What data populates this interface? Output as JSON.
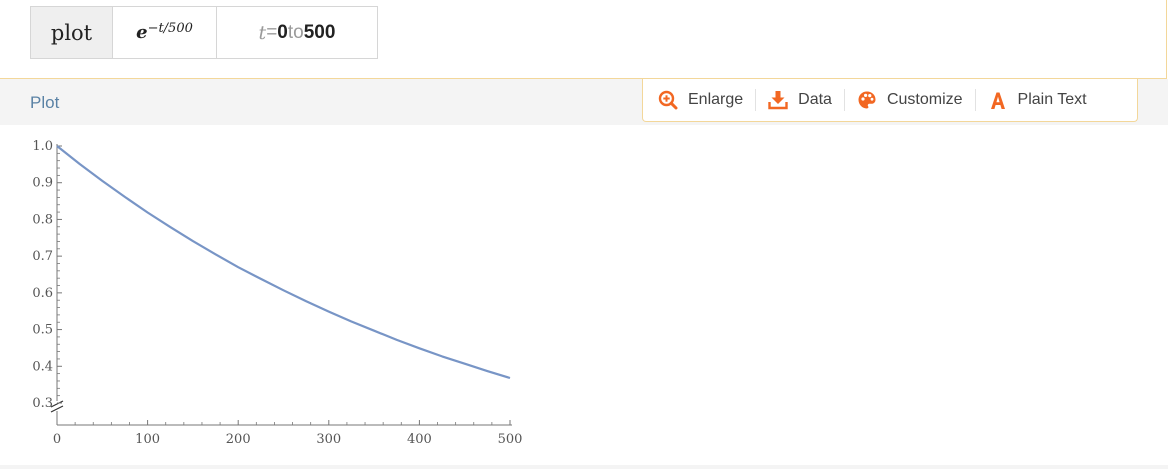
{
  "input": {
    "command": "plot",
    "function_base": "e",
    "function_exponent": "−t/500",
    "range_var": "t",
    "range_eq": " = ",
    "range_from": "0",
    "range_to_word": " to ",
    "range_to": "500"
  },
  "pod": {
    "title": "Plot"
  },
  "toolbar": {
    "enlarge_label": "Enlarge",
    "data_label": "Data",
    "customize_label": "Customize",
    "plain_text_label": "Plain Text",
    "icon_color": "#f26722"
  },
  "chart_data": {
    "type": "line",
    "function": "exp(-t/500)",
    "x": [
      0,
      25,
      50,
      75,
      100,
      125,
      150,
      175,
      200,
      225,
      250,
      275,
      300,
      325,
      350,
      375,
      400,
      425,
      450,
      475,
      500
    ],
    "y": [
      1.0,
      0.951,
      0.905,
      0.861,
      0.819,
      0.779,
      0.741,
      0.705,
      0.67,
      0.638,
      0.607,
      0.577,
      0.549,
      0.522,
      0.497,
      0.472,
      0.449,
      0.427,
      0.407,
      0.387,
      0.368
    ],
    "xlim": [
      0,
      500
    ],
    "ylim": [
      0.3,
      1.0
    ],
    "x_ticks": [
      "0",
      "100",
      "200",
      "300",
      "400",
      "500"
    ],
    "y_ticks": [
      "0.3",
      "0.4",
      "0.5",
      "0.6",
      "0.7",
      "0.8",
      "0.9",
      "1.0"
    ],
    "axis_break_y": true,
    "line_color": "#7895c6",
    "axis_color": "#777777",
    "grid": false
  }
}
